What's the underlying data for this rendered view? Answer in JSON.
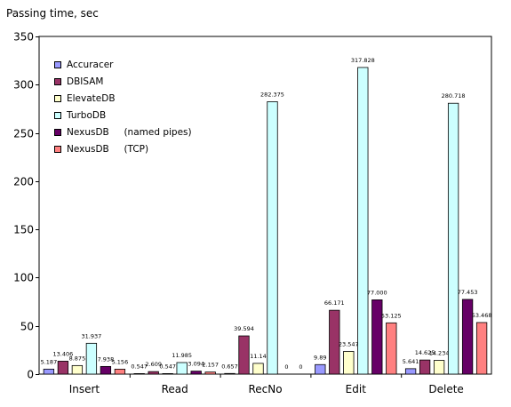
{
  "chart_data": {
    "type": "bar",
    "title": "",
    "ylabel": "Passing time, sec",
    "xlabel": "",
    "ylim": [
      0,
      350
    ],
    "yticks": [
      0,
      50,
      100,
      150,
      200,
      250,
      300,
      350
    ],
    "grid": false,
    "legend_position": "top-left",
    "categories": [
      "Insert",
      "Read",
      "RecNo",
      "Edit",
      "Delete"
    ],
    "series": [
      {
        "name": "Accuracer",
        "color": "#9999ff",
        "values": [
          5.187,
          0.547,
          0.657,
          9.89,
          5.641
        ],
        "labels": [
          "5.187",
          "0.547",
          "0.657",
          "9.89",
          "5.641"
        ]
      },
      {
        "name": "DBISAM",
        "color": "#993366",
        "values": [
          13.406,
          2.609,
          39.594,
          66.171,
          14.625
        ],
        "labels": [
          "13.406",
          "2.609",
          "39.594",
          "66.171",
          "14.625"
        ]
      },
      {
        "name": "ElevateDB",
        "color": "#ffffcc",
        "values": [
          8.875,
          0.547,
          11.14,
          23.547,
          14.234
        ],
        "labels": [
          "8.875",
          "0.547",
          "11.14",
          "23.547",
          "14.234"
        ]
      },
      {
        "name": "TurboDB",
        "color": "#ccffff",
        "values": [
          31.937,
          11.985,
          282.375,
          317.828,
          280.718
        ],
        "labels": [
          "31.937",
          "11.985",
          "282.375",
          "317.828",
          "280.718"
        ]
      },
      {
        "name": "NexusDB     (named pipes)",
        "color": "#660066",
        "values": [
          7.938,
          3.094,
          0,
          77.0,
          77.453
        ],
        "labels": [
          "7.938",
          "3.094",
          "0",
          "77.000",
          "77.453"
        ]
      },
      {
        "name": "NexusDB     (TCP)",
        "color": "#ff8080",
        "values": [
          5.156,
          2.157,
          0,
          53.125,
          53.468
        ],
        "labels": [
          "5.156",
          "2.157",
          "0",
          "53.125",
          "53.468"
        ]
      }
    ]
  }
}
